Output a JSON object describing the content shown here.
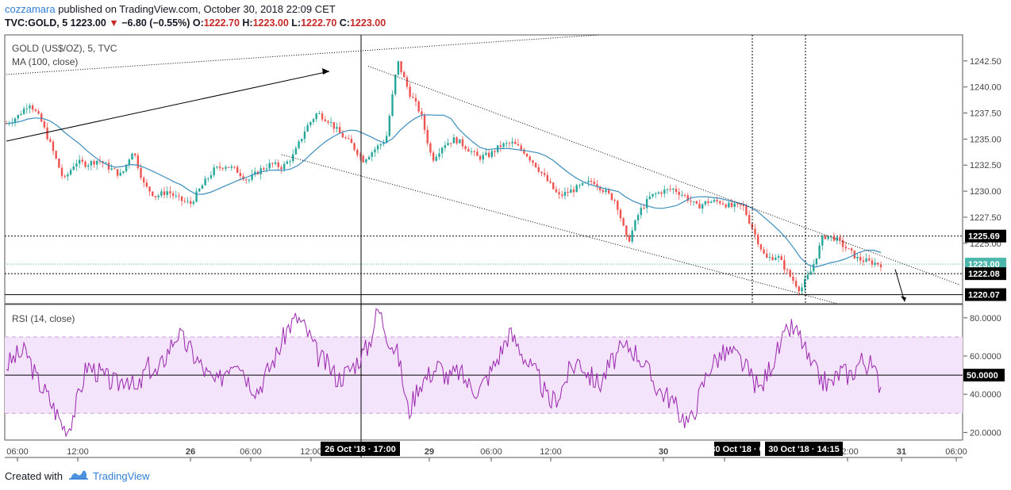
{
  "header": {
    "author": "cozzamara",
    "published_text": "published on TradingView.com, October 30, 2018 22:09 CET",
    "symbol": "TVC:GOLD, 5",
    "last": "1223.00",
    "change": "−6.80 (−0.55%)",
    "open_label": "O:",
    "open": "1222.70",
    "high_label": "H:",
    "high": "1223.00",
    "low_label": "L:",
    "low": "1222.70",
    "close_label": "C:",
    "close": "1223.00"
  },
  "footer": {
    "created_with": "Created with",
    "brand": "TradingView"
  },
  "chart_data": [
    {
      "type": "candlestick",
      "title": "GOLD (US$/OZ), 5, TVC",
      "indicator_label": "MA (100, close)",
      "y_ticks": [
        "1242.50",
        "1240.00",
        "1237.50",
        "1235.00",
        "1232.50",
        "1230.00",
        "1227.50",
        "1225.00"
      ],
      "ylim": [
        1219.2,
        1245.0
      ],
      "x_ticks": [
        "06:00",
        "12:00",
        "26",
        "06:00",
        "12:00",
        "29",
        "06:00",
        "12:00",
        "30",
        "06:00",
        "12:00",
        "31",
        "06:00"
      ],
      "x_tooltips": [
        "26 Oct '18 · 17:00",
        "30 Oct '18 · 0",
        "30 Oct '18 · 14:15"
      ],
      "price_labels": [
        {
          "text": "1225.69",
          "value": 1225.69,
          "color": "#000000"
        },
        {
          "text": "1223.00",
          "value": 1223.0,
          "color": "#4db6ac"
        },
        {
          "text": "1222.08",
          "value": 1222.08,
          "color": "#000000"
        },
        {
          "text": "1220.07",
          "value": 1220.07,
          "color": "#000000"
        }
      ],
      "horizontal_levels": [
        1225.69,
        1222.08,
        1220.07
      ],
      "close_series_approx": [
        1236.5,
        1237.2,
        1238.5,
        1236.8,
        1234.0,
        1231.0,
        1232.8,
        1232.6,
        1233.0,
        1232.2,
        1231.5,
        1234.0,
        1230.5,
        1229.5,
        1230.0,
        1229.2,
        1228.8,
        1230.5,
        1232.0,
        1232.5,
        1232.0,
        1231.0,
        1232.0,
        1232.6,
        1232.3,
        1233.5,
        1236.0,
        1237.5,
        1236.8,
        1235.5,
        1234.5,
        1233.0,
        1234.0,
        1235.0,
        1242.5,
        1239.5,
        1237.5,
        1233.0,
        1234.5,
        1235.0,
        1234.2,
        1233.2,
        1233.5,
        1234.4,
        1234.6,
        1233.8,
        1232.5,
        1231.0,
        1229.5,
        1230.0,
        1230.5,
        1231.0,
        1230.0,
        1229.0,
        1225.0,
        1228.0,
        1229.5,
        1230.0,
        1230.2,
        1229.5,
        1228.5,
        1229.0,
        1229.0,
        1228.5,
        1228.6,
        1226.0,
        1223.5,
        1223.8,
        1222.0,
        1220.5,
        1222.5,
        1225.7,
        1225.5,
        1224.5,
        1223.5,
        1223.2,
        1223.0
      ]
    },
    {
      "type": "line",
      "title": "RSI (14, close)",
      "y_ticks": [
        "80.0000",
        "60.0000",
        "40.0000",
        "20.0000"
      ],
      "current_value_label": "50.0000",
      "ylim": [
        16,
        87
      ],
      "band": [
        30,
        70
      ],
      "values_approx": [
        55,
        60,
        62,
        48,
        40,
        30,
        20,
        35,
        55,
        52,
        48,
        45,
        50,
        40,
        55,
        50,
        62,
        72,
        65,
        58,
        50,
        45,
        55,
        60,
        48,
        42,
        52,
        62,
        75,
        80,
        72,
        60,
        55,
        48,
        52,
        58,
        65,
        85,
        70,
        60,
        30,
        45,
        50,
        55,
        48,
        52,
        45,
        42,
        50,
        60,
        72,
        65,
        55,
        48,
        35,
        40,
        52,
        58,
        50,
        45,
        55,
        62,
        65,
        60,
        50,
        42,
        38,
        30,
        25,
        40,
        55,
        60,
        62,
        58,
        50,
        42,
        55,
        65,
        75,
        70,
        55,
        48,
        45,
        52,
        50,
        58,
        55,
        45
      ]
    }
  ]
}
